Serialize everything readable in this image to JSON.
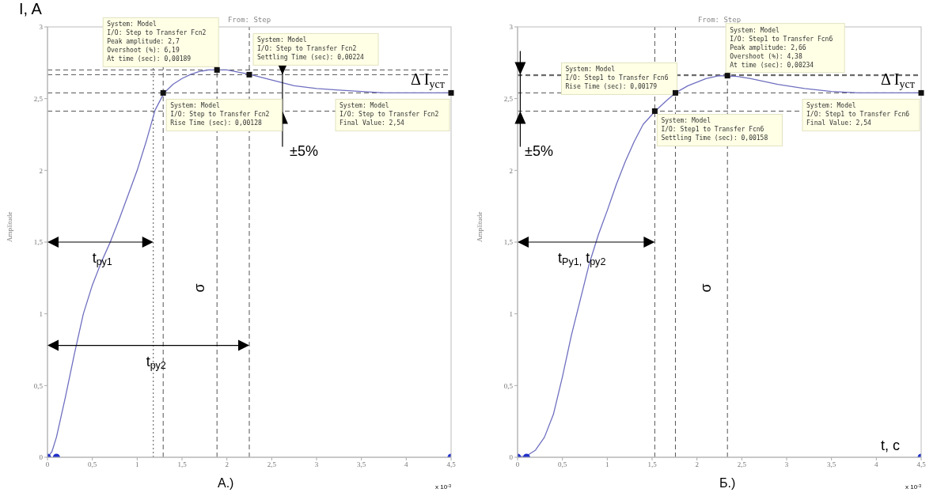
{
  "chart_data": [
    {
      "type": "line",
      "title": "From: Step",
      "ylabel": "Amplitude",
      "xlim": [
        0,
        4.5
      ],
      "ylim": [
        0,
        3
      ],
      "xticks": [
        0,
        {
          "value": 0.5,
          "label": "0,5"
        },
        1,
        {
          "value": 1.5,
          "label": "1,5"
        },
        2,
        {
          "value": 2.5,
          "label": "2,5"
        },
        3,
        {
          "value": 3.5,
          "label": "3,5"
        },
        4,
        {
          "value": 4.5,
          "label": "4,5"
        }
      ],
      "yticks": [
        0,
        {
          "value": 0.5,
          "label": "0,5"
        },
        1,
        {
          "value": 1.5,
          "label": "1,5"
        },
        2,
        {
          "value": 2.5,
          "label": "2,5"
        },
        3
      ],
      "grid": false,
      "legend": false,
      "series": [
        {
          "color": "#6f6fc0",
          "x": [
            0,
            0.05,
            0.1,
            0.2,
            0.3,
            0.4,
            0.5,
            0.6,
            0.7,
            0.8,
            0.9,
            1.0,
            1.1,
            1.2,
            1.3,
            1.4,
            1.5,
            1.6,
            1.7,
            1.8,
            1.9,
            2.0,
            2.25,
            2.5,
            2.75,
            3.0,
            3.25,
            3.5,
            3.75,
            4.0,
            4.5
          ],
          "values": [
            0,
            0.04,
            0.14,
            0.42,
            0.72,
            1.0,
            1.2,
            1.36,
            1.5,
            1.66,
            1.83,
            2.0,
            2.2,
            2.42,
            2.54,
            2.6,
            2.64,
            2.67,
            2.69,
            2.7,
            2.7,
            2.7,
            2.67,
            2.63,
            2.59,
            2.57,
            2.56,
            2.55,
            2.54,
            2.54,
            2.54
          ]
        },
        {
          "type": "scatter",
          "color": "#2030c8",
          "marker": "circle",
          "x": [
            0,
            0.1,
            4.5
          ],
          "values": [
            0,
            0,
            0
          ]
        }
      ],
      "ref_lines": [
        {
          "axis": "y",
          "value": 2.7,
          "line_style": "dashed"
        },
        {
          "axis": "y",
          "value": 2.667,
          "line_style": "dashed"
        },
        {
          "axis": "y",
          "value": 2.54,
          "line_style": "dashed"
        },
        {
          "axis": "y",
          "value": 2.413,
          "line_style": "dashed"
        },
        {
          "axis": "x",
          "value": 1.18,
          "line_style": "dotted"
        },
        {
          "axis": "x",
          "value": 1.29,
          "line_style": "dashed"
        },
        {
          "axis": "x",
          "value": 1.89,
          "line_style": "dashed"
        },
        {
          "axis": "x",
          "value": 2.25,
          "line_style": "dashed"
        }
      ],
      "annotations": [
        {
          "text": "System: Model\nI/O: Step to Transfer Fcn2\nPeak amplitude: 2,7\nOvershoot (%): 6,19\nAt time (sec): 0,00189",
          "x": 1.89,
          "y": 2.7
        },
        {
          "text": "System: Model\nI/O: Step to Transfer Fcn2\nSettling Time (sec): 0,00224",
          "x": 2.25,
          "y": 2.667
        },
        {
          "text": "System: Model\nI/O: Step to Transfer Fcn2\nRise Time (sec): 0,00128",
          "x": 1.29,
          "y": 2.54
        },
        {
          "text": "System: Model\nI/O: Step to Transfer Fcn2\nFinal Value: 2,54",
          "x": 4.5,
          "y": 2.54
        },
        "I, A",
        "t$_{ру1}$",
        "t$_{ру2}$",
        "σ",
        "±5%",
        "Δ I$_{уст}$",
        "А.)",
        "x 10$^{-3}$"
      ]
    },
    {
      "type": "line",
      "title": "From: Step",
      "ylabel": "Amplitude",
      "xlim": [
        0,
        4.5
      ],
      "ylim": [
        0,
        3
      ],
      "xticks": [
        0,
        {
          "value": 0.5,
          "label": "0,5"
        },
        1,
        {
          "value": 1.5,
          "label": "1,5"
        },
        2,
        {
          "value": 2.5,
          "label": "2,5"
        },
        3,
        {
          "value": 3.5,
          "label": "3,5"
        },
        4,
        {
          "value": 4.5,
          "label": "4,5"
        }
      ],
      "yticks": [
        0,
        {
          "value": 0.5,
          "label": "0,5"
        },
        1,
        {
          "value": 1.5,
          "label": "1,5"
        },
        2,
        {
          "value": 2.5,
          "label": "2,5"
        },
        3
      ],
      "grid": false,
      "legend": false,
      "series": [
        {
          "color": "#6f6fc0",
          "x": [
            0,
            0.1,
            0.2,
            0.3,
            0.4,
            0.5,
            0.6,
            0.7,
            0.8,
            0.9,
            1.0,
            1.1,
            1.2,
            1.3,
            1.4,
            1.53,
            1.65,
            1.76,
            1.9,
            2.1,
            2.25,
            2.45,
            2.6,
            2.9,
            3.2,
            3.5,
            3.8,
            4.5
          ],
          "values": [
            0,
            0.01,
            0.05,
            0.14,
            0.3,
            0.56,
            0.85,
            1.1,
            1.35,
            1.55,
            1.72,
            1.9,
            2.06,
            2.2,
            2.32,
            2.41,
            2.48,
            2.54,
            2.59,
            2.64,
            2.66,
            2.655,
            2.64,
            2.6,
            2.57,
            2.55,
            2.54,
            2.54
          ]
        },
        {
          "type": "scatter",
          "color": "#2030c8",
          "marker": "circle",
          "x": [
            0,
            0.1,
            4.5
          ],
          "values": [
            0,
            0,
            0
          ]
        }
      ],
      "ref_lines": [
        {
          "axis": "y",
          "value": 2.667,
          "line_style": "dashed"
        },
        {
          "axis": "y",
          "value": 2.66,
          "line_style": "dashed"
        },
        {
          "axis": "y",
          "value": 2.54,
          "line_style": "dashed"
        },
        {
          "axis": "y",
          "value": 2.413,
          "line_style": "dashed"
        },
        {
          "axis": "x",
          "value": 1.53,
          "line_style": "dashed"
        },
        {
          "axis": "x",
          "value": 1.76,
          "line_style": "dashed"
        },
        {
          "axis": "x",
          "value": 2.34,
          "line_style": "dashed"
        }
      ],
      "annotations": [
        {
          "text": "System: Model\nI/O: Step1 to Transfer Fcn6\nRise Time (sec): 0,00179",
          "x": 1.76,
          "y": 2.54
        },
        {
          "text": "System: Model\nI/O: Step1 to Transfer Fcn6\nSettling Time (sec): 0,00158",
          "x": 1.53,
          "y": 2.413
        },
        {
          "text": "System: Model\nI/O: Step1 to Transfer Fcn6\nPeak amplitude: 2,66\nOvershoot (%): 4,38\nAt time (sec): 0,00234",
          "x": 2.34,
          "y": 2.66
        },
        {
          "text": "System: Model\nI/O: Step1 to Transfer Fcn6\nFinal Value: 2,54",
          "x": 4.5,
          "y": 2.54
        },
        "±5%",
        "t$_{Ру1,}$ t$_{ру2}$",
        "σ",
        "Δ I$_{уст}$",
        "t, c",
        "Б.)",
        "x 10$^{-3}$"
      ]
    }
  ]
}
